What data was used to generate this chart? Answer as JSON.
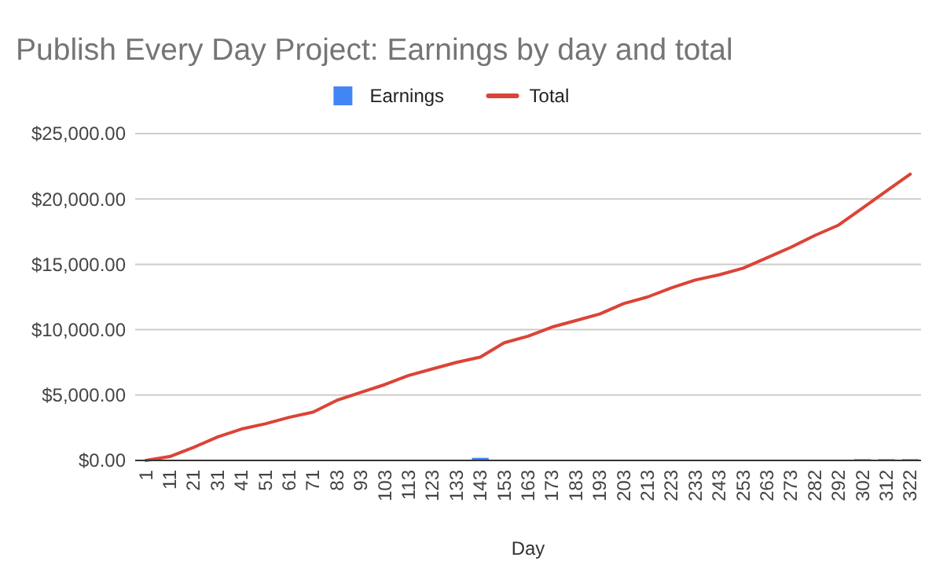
{
  "chart_data": {
    "type": "bar",
    "title": "Publish Every Day Project: Earnings by day and total",
    "xlabel": "Day",
    "categories": [
      "1",
      "11",
      "21",
      "31",
      "41",
      "51",
      "61",
      "71",
      "83",
      "93",
      "103",
      "113",
      "123",
      "133",
      "143",
      "153",
      "163",
      "173",
      "183",
      "193",
      "203",
      "213",
      "223",
      "233",
      "243",
      "253",
      "263",
      "273",
      "282",
      "292",
      "302",
      "312",
      "322"
    ],
    "series": [
      {
        "name": "Earnings",
        "color": "#4285f4",
        "values": [
          0,
          0,
          0,
          0,
          0,
          0,
          0,
          0,
          0,
          0,
          0,
          0,
          0,
          0,
          200,
          0,
          0,
          0,
          0,
          0,
          0,
          0,
          0,
          0,
          0,
          0,
          0,
          0,
          0,
          0,
          100,
          100,
          100
        ]
      },
      {
        "name": "Total",
        "type": "line",
        "color": "#db4437",
        "values": [
          0,
          300,
          1000,
          1800,
          2400,
          2800,
          3300,
          3700,
          4600,
          5200,
          5800,
          6500,
          7000,
          7500,
          7900,
          9000,
          9500,
          10200,
          10700,
          11200,
          12000,
          12500,
          13200,
          13800,
          14200,
          14700,
          15500,
          16300,
          17200,
          18000,
          19300,
          20600,
          21900
        ]
      }
    ],
    "ylim": [
      0,
      25000
    ],
    "yticks": [
      {
        "value": 0,
        "label": "$0.00"
      },
      {
        "value": 5000,
        "label": "$5,000.00"
      },
      {
        "value": 10000,
        "label": "$10,000.00"
      },
      {
        "value": 15000,
        "label": "$15,000.00"
      },
      {
        "value": 20000,
        "label": "$20,000.00"
      },
      {
        "value": 25000,
        "label": "$25,000.00"
      }
    ],
    "grid": "y",
    "legend": "top"
  }
}
